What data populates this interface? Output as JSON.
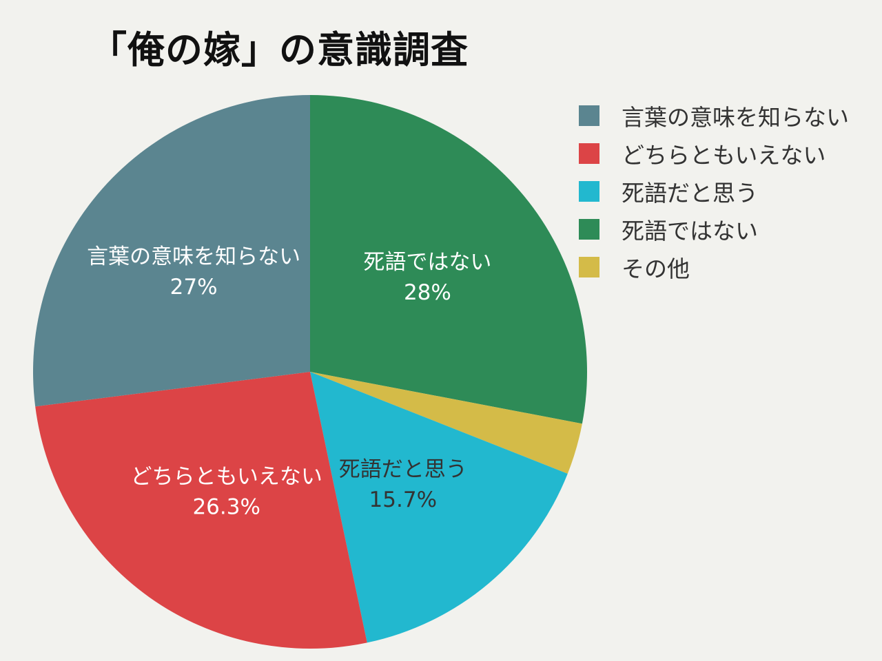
{
  "chart_data": {
    "type": "pie",
    "title": "「俺の嫁」の意識調査",
    "legend_position": "right",
    "slices": [
      {
        "label": "死語ではない",
        "value": 28,
        "display": "28%",
        "color": "#2e8b57"
      },
      {
        "label": "その他",
        "value": 3,
        "display": "",
        "color": "#d4bb48"
      },
      {
        "label": "死語だと思う",
        "value": 15.7,
        "display": "15.7%",
        "color": "#22b8cf"
      },
      {
        "label": "どちらともいえない",
        "value": 26.3,
        "display": "26.3%",
        "color": "#dc4446"
      },
      {
        "label": "言葉の意味を知らない",
        "value": 27,
        "display": "27%",
        "color": "#5b8590"
      }
    ],
    "legend": [
      {
        "label": "言葉の意味を知らない",
        "color": "#5b8590"
      },
      {
        "label": "どちらともいえない",
        "color": "#dc4446"
      },
      {
        "label": "死語だと思う",
        "color": "#22b8cf"
      },
      {
        "label": "死語ではない",
        "color": "#2e8b57"
      },
      {
        "label": "その他",
        "color": "#d4bb48"
      }
    ]
  }
}
